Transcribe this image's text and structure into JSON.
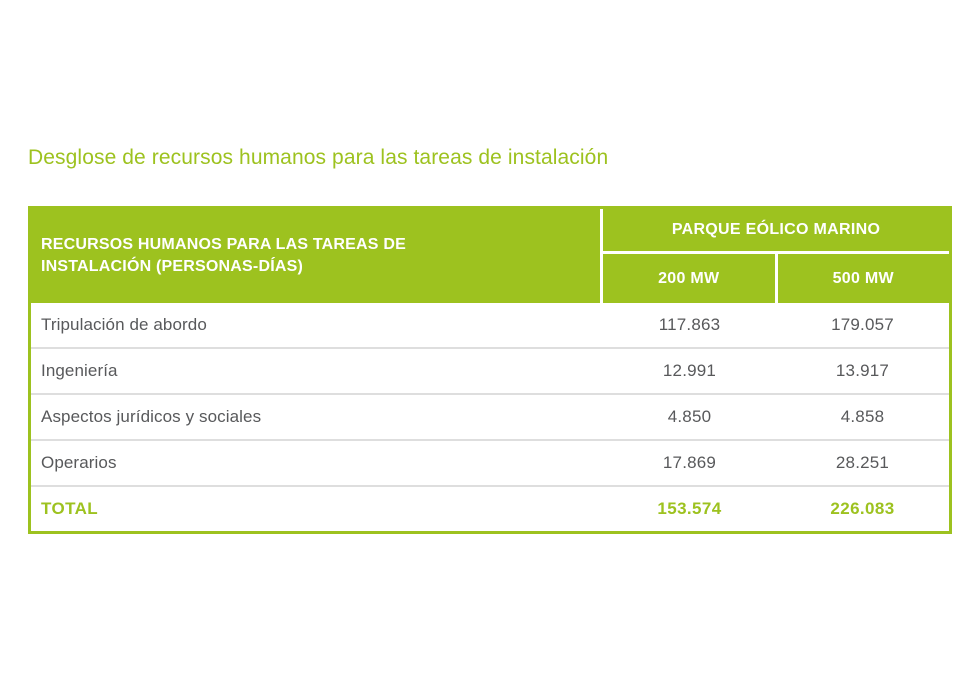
{
  "page": {
    "title": "Desglose de recursos humanos para las tareas de instalación"
  },
  "table": {
    "header": {
      "left_title": "RECURSOS HUMANOS PARA LAS TAREAS DE\nINSTALACIÓN (PERSONAS-DÍAS)",
      "group_title": "PARQUE EÓLICO MARINO",
      "col_200": "200 MW",
      "col_500": "500 MW"
    },
    "rows": [
      {
        "label": "Tripulación de abordo",
        "mw200": "117.863",
        "mw500": "179.057"
      },
      {
        "label": "Ingeniería",
        "mw200": "12.991",
        "mw500": "13.917"
      },
      {
        "label": "Aspectos jurídicos y sociales",
        "mw200": "4.850",
        "mw500": "4.858"
      },
      {
        "label": "Operarios",
        "mw200": "17.869",
        "mw500": "28.251"
      }
    ],
    "total": {
      "label": "TOTAL",
      "mw200": "153.574",
      "mw500": "226.083"
    }
  },
  "colors": {
    "brand_green": "#9dc21f",
    "body_text_gray": "#58595b",
    "row_divider_gray": "#dedede",
    "header_text": "#ffffff",
    "background": "#ffffff"
  }
}
